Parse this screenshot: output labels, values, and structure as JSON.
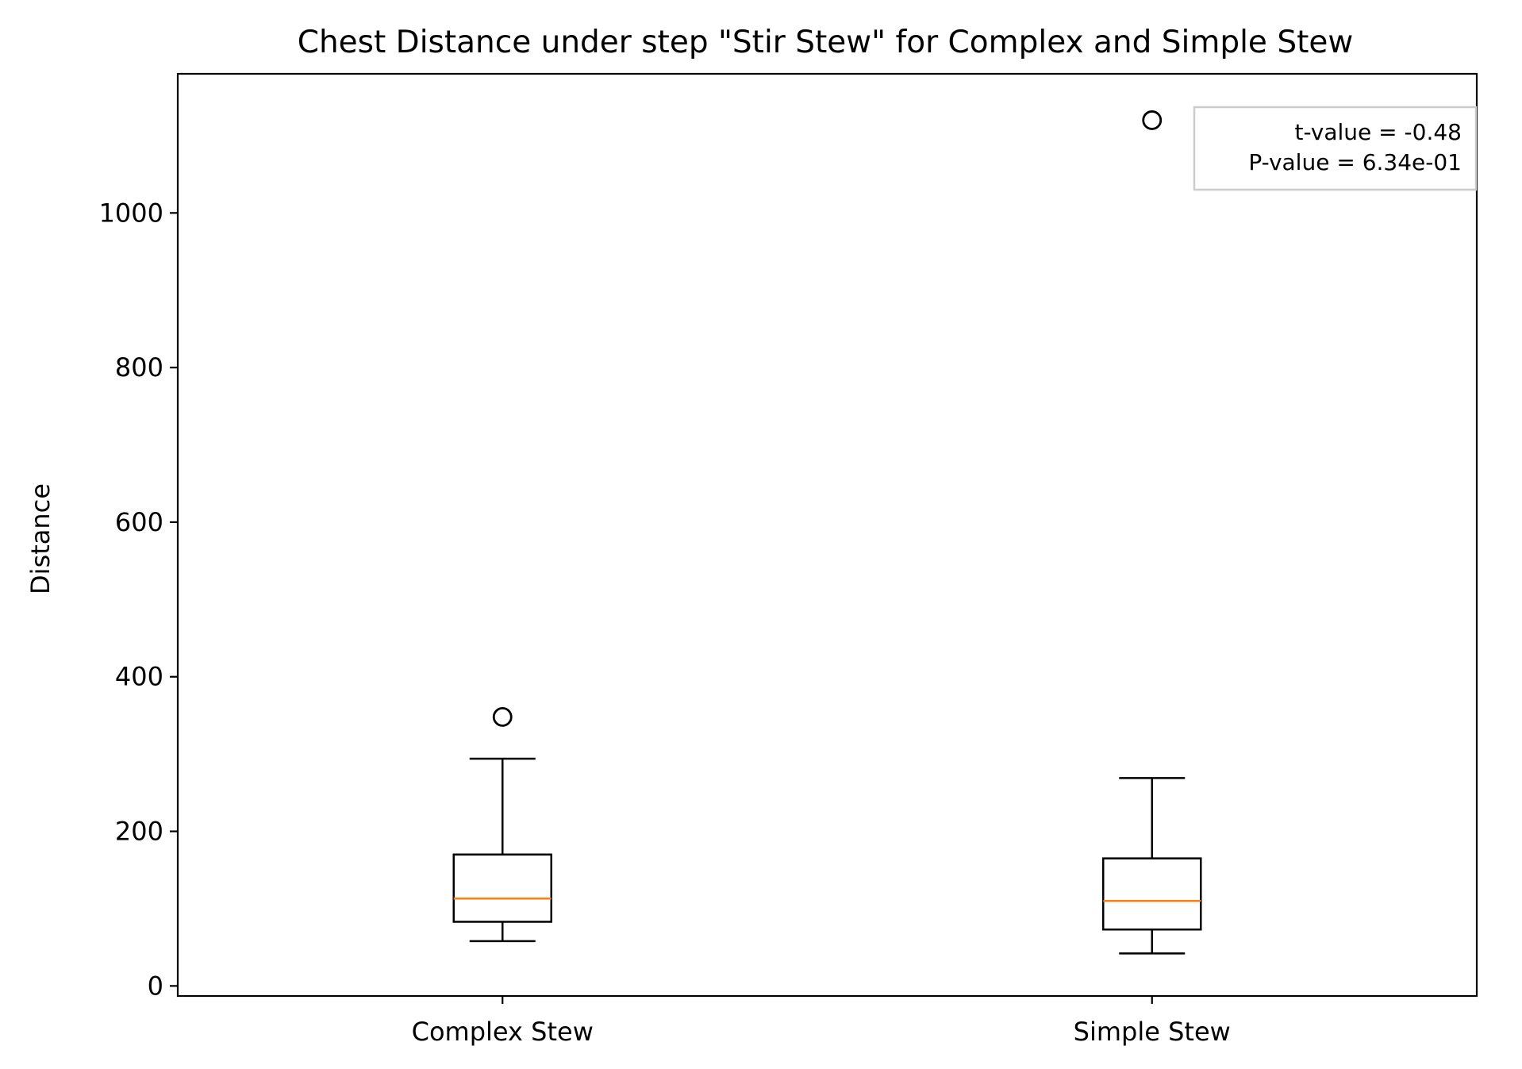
{
  "chart_data": {
    "type": "box",
    "title": "Chest Distance under step \"Stir Stew\" for Complex and Simple Stew",
    "xlabel": "",
    "ylabel": "Distance",
    "categories": [
      "Complex Stew",
      "Simple Stew"
    ],
    "ylim": [
      -13,
      1180
    ],
    "yticks": [
      0,
      200,
      400,
      600,
      800,
      1000
    ],
    "boxes": [
      {
        "category": "Complex Stew",
        "whisker_low": 58,
        "q1": 83,
        "median": 113,
        "q3": 170,
        "whisker_high": 294,
        "outliers": [
          348
        ]
      },
      {
        "category": "Simple Stew",
        "whisker_low": 42,
        "q1": 73,
        "median": 110,
        "q3": 165,
        "whisker_high": 269,
        "outliers": [
          1120
        ]
      }
    ],
    "annotation": {
      "lines": [
        "t-value = -0.48",
        "P-value = 6.34e-01"
      ],
      "placement": "top-right"
    },
    "colors": {
      "median": "#ff7f0e",
      "box": "#000000",
      "annotation_border": "#cccccc"
    },
    "grid": false
  }
}
